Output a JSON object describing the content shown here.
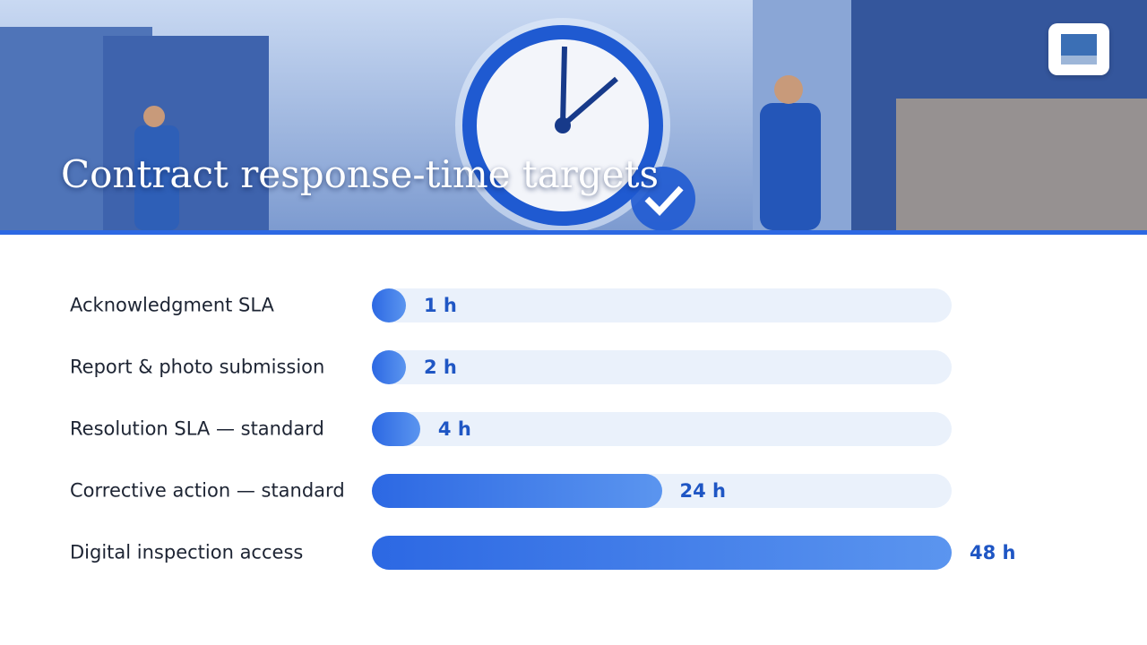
{
  "chart_data": {
    "type": "bar",
    "orientation": "horizontal",
    "title": "Contract response-time targets",
    "categories": [
      "Acknowledgment SLA",
      "Report & photo submission",
      "Resolution SLA — standard",
      "Corrective action — standard",
      "Digital inspection access"
    ],
    "values": [
      1,
      2,
      4,
      24,
      48
    ],
    "value_labels": [
      "1 h",
      "2 h",
      "4 h",
      "24 h",
      "48 h"
    ],
    "color": "#2c68e3"
  }
}
